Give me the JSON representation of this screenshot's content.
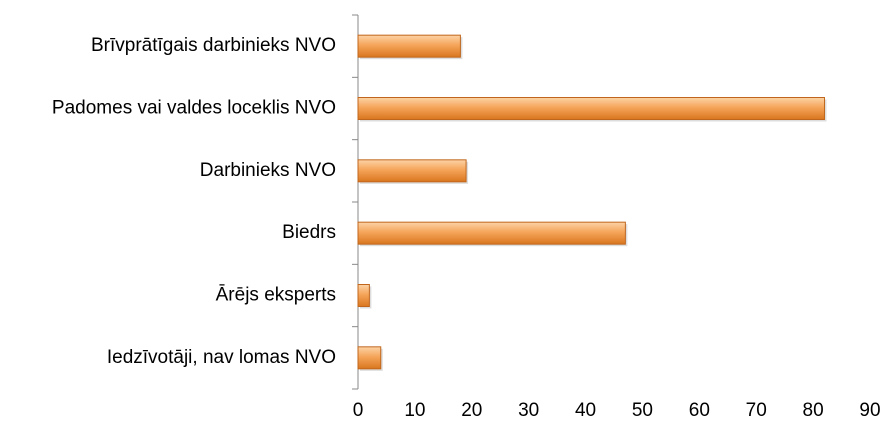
{
  "chart_data": {
    "type": "bar",
    "orientation": "horizontal",
    "categories": [
      "Brīvprātīgais darbinieks NVO",
      "Padomes vai valdes loceklis NVO",
      "Darbinieks NVO",
      "Biedrs",
      "Ārējs eksperts",
      "Iedzīvotāji, nav lomas NVO"
    ],
    "values": [
      18,
      82,
      19,
      47,
      2,
      4
    ],
    "color": "#f29a46",
    "xlim": [
      0,
      90
    ],
    "xticks": [
      0,
      10,
      20,
      30,
      40,
      50,
      60,
      70,
      80,
      90
    ],
    "grid": false
  }
}
